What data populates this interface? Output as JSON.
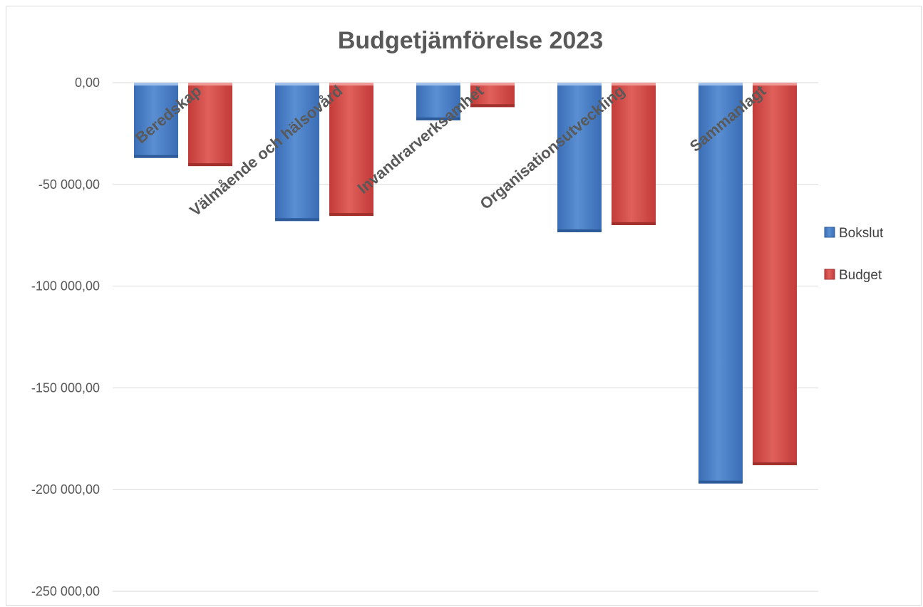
{
  "chart_data": {
    "type": "bar",
    "title": "Budgetjämförelse 2023",
    "categories": [
      "Beredskap",
      "Välmående och hälsovård",
      "Invandrarverksamhet",
      "Organisationsutveckling",
      "Sammanlagt"
    ],
    "series": [
      {
        "name": "Bokslut",
        "values": [
          -37000,
          -68000,
          -18500,
          -73500,
          -197000
        ],
        "color": "#4a7ec2"
      },
      {
        "name": "Budget",
        "values": [
          -41000,
          -65500,
          -12000,
          -70000,
          -188000
        ],
        "color": "#cf4a47"
      }
    ],
    "ylim": [
      -250000,
      0
    ],
    "yticks": [
      0,
      -50000,
      -100000,
      -150000,
      -200000,
      -250000
    ],
    "ytick_labels": [
      "0,00",
      "-50 000,00",
      "-100 000,00",
      "-150 000,00",
      "-200 000,00",
      "-250 000,00"
    ],
    "grid": true,
    "legend_position": "right"
  }
}
